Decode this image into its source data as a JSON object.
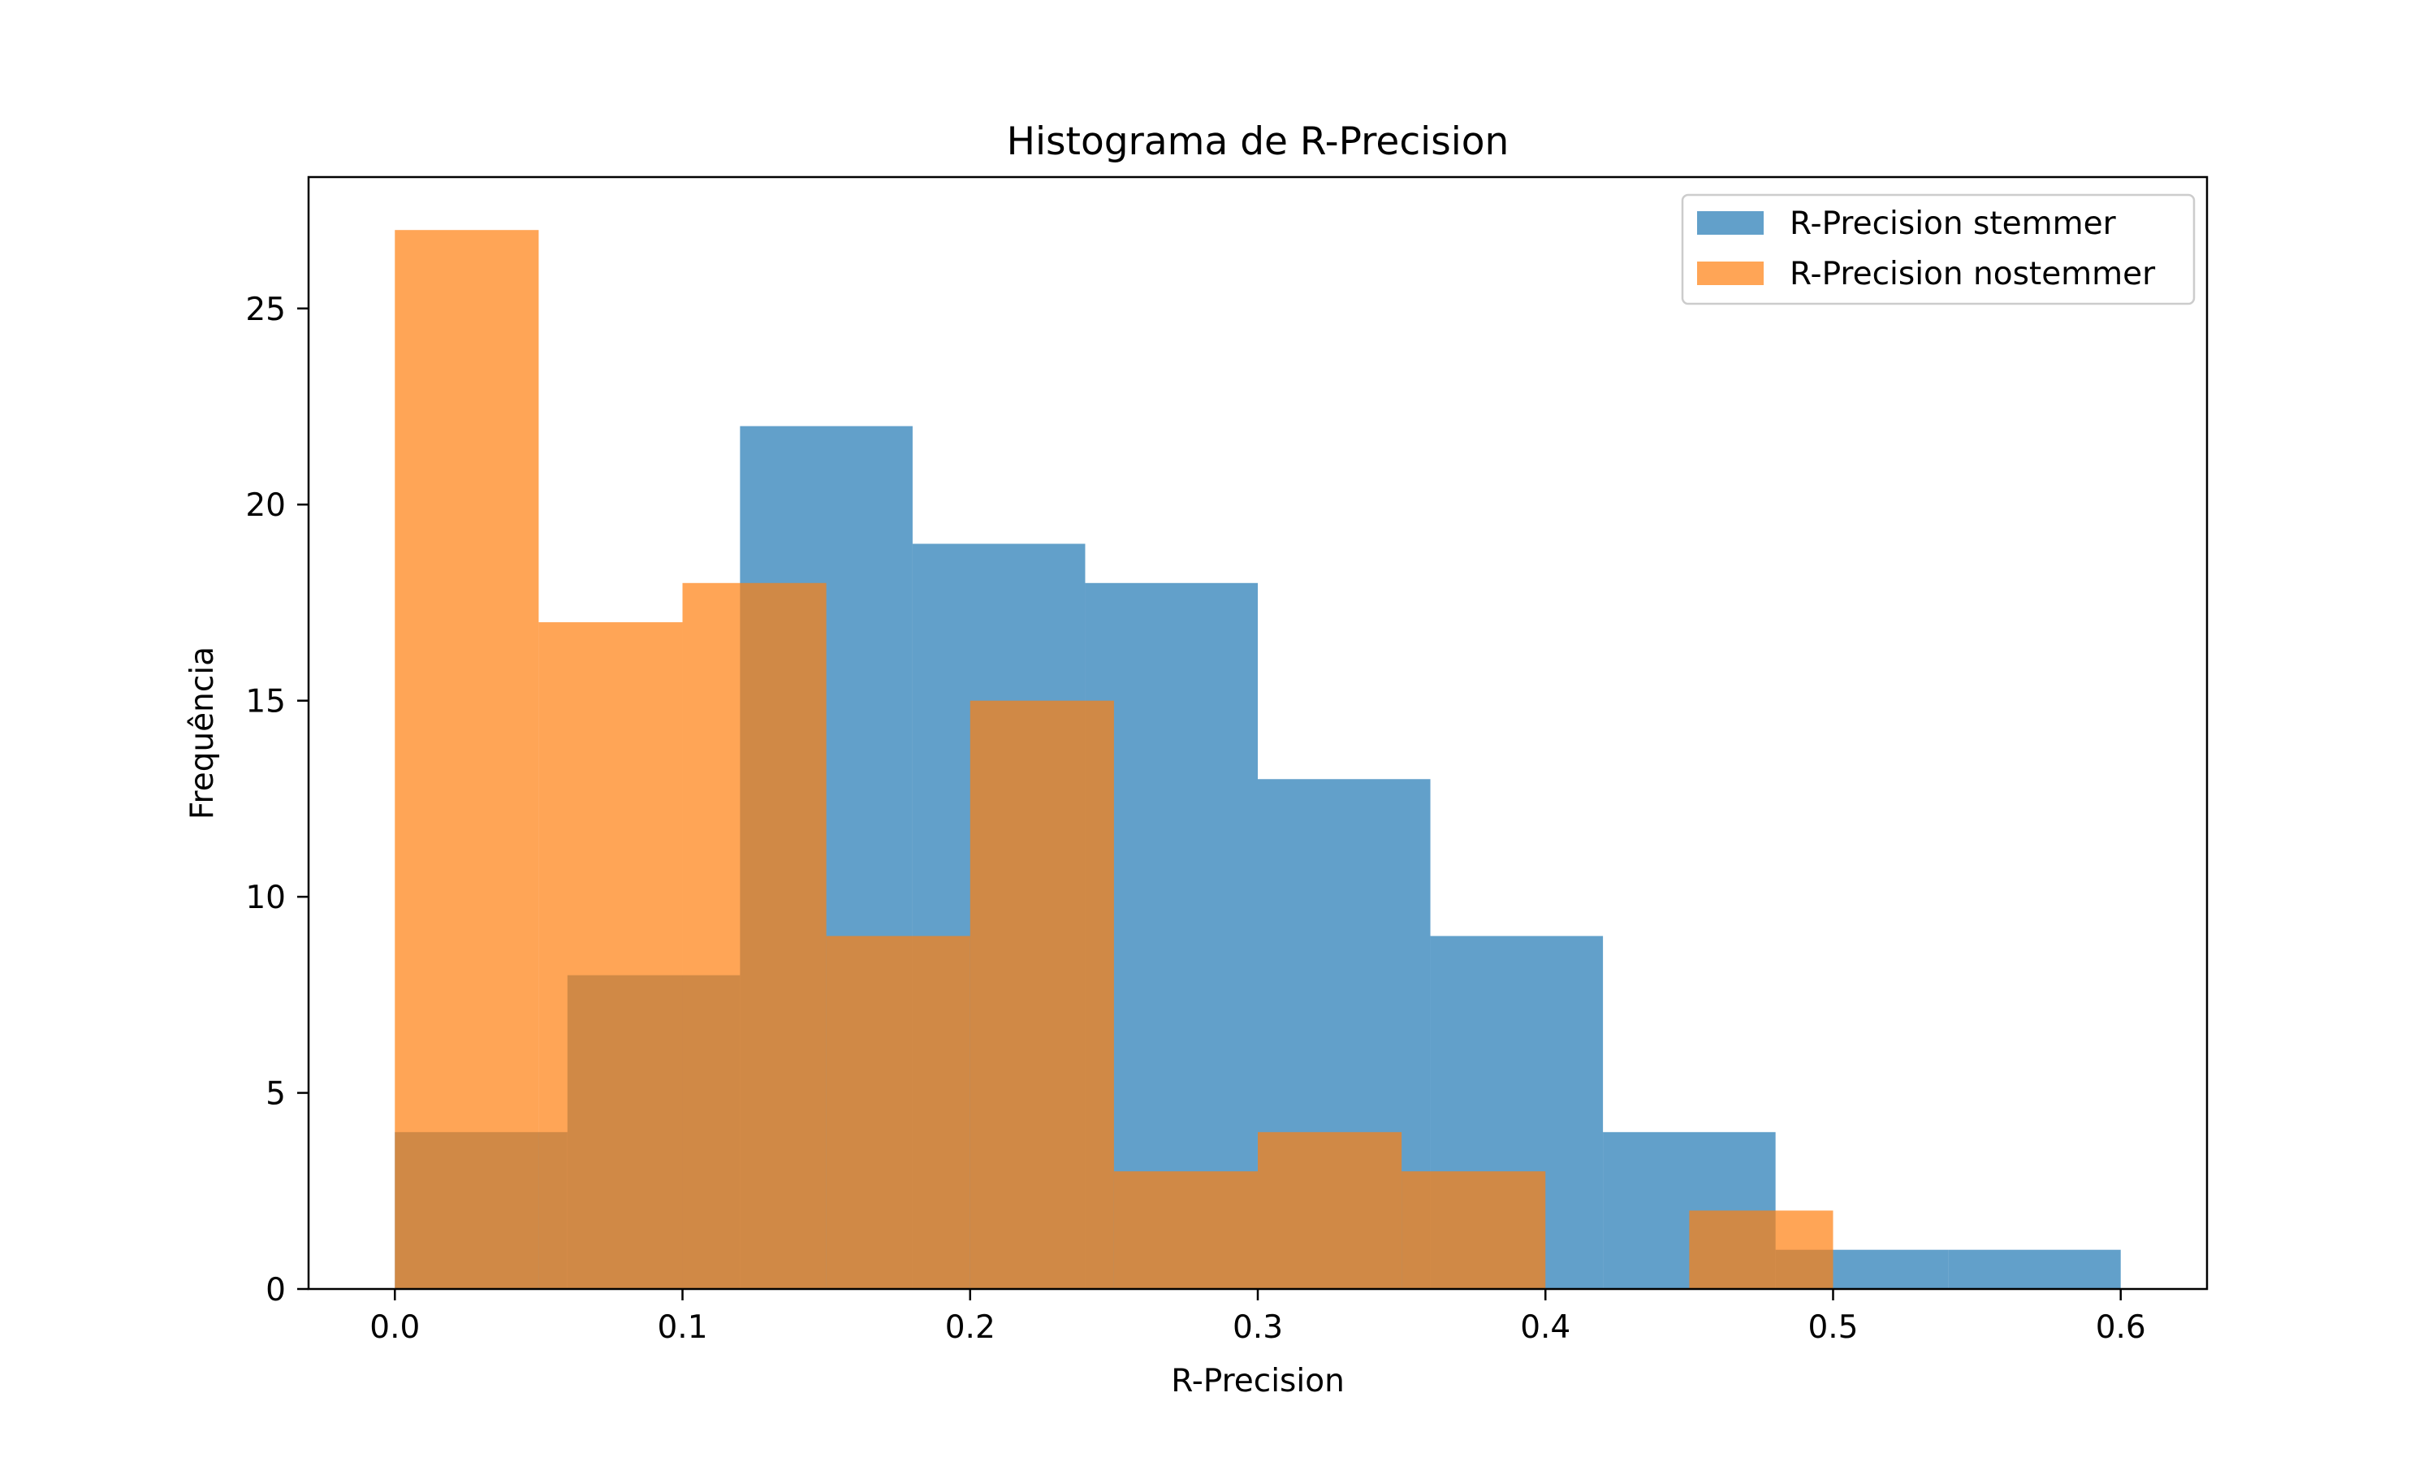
{
  "chart_data": {
    "type": "bar",
    "subtype": "histogram-overlay",
    "title": "Histograma de R-Precision",
    "xlabel": "R-Precision",
    "ylabel": "Frequência",
    "xlim": [
      -0.03,
      0.63
    ],
    "ylim": [
      0,
      28.35
    ],
    "x_ticks": [
      0.0,
      0.1,
      0.2,
      0.3,
      0.4,
      0.5,
      0.6
    ],
    "x_tick_labels": [
      "0.0",
      "0.1",
      "0.2",
      "0.3",
      "0.4",
      "0.5",
      "0.6"
    ],
    "y_ticks": [
      0,
      5,
      10,
      15,
      20,
      25
    ],
    "y_tick_labels": [
      "0",
      "5",
      "10",
      "15",
      "20",
      "25"
    ],
    "grid": false,
    "legend_position": "top-right",
    "series": [
      {
        "name": "R-Precision stemmer",
        "color": "#1f77b4",
        "opacity": 0.7,
        "bin_edges": [
          0.0,
          0.06,
          0.12,
          0.18,
          0.24,
          0.3,
          0.36,
          0.42,
          0.48,
          0.54,
          0.6
        ],
        "values": [
          4,
          8,
          22,
          19,
          18,
          13,
          9,
          4,
          1,
          1
        ]
      },
      {
        "name": "R-Precision nostemmer",
        "color": "#ff7f0e",
        "opacity": 0.7,
        "bin_edges": [
          0.0,
          0.05,
          0.1,
          0.15,
          0.2,
          0.25,
          0.3,
          0.35,
          0.4,
          0.45,
          0.5
        ],
        "values": [
          27,
          17,
          18,
          9,
          15,
          3,
          4,
          3,
          0,
          2
        ]
      }
    ]
  }
}
